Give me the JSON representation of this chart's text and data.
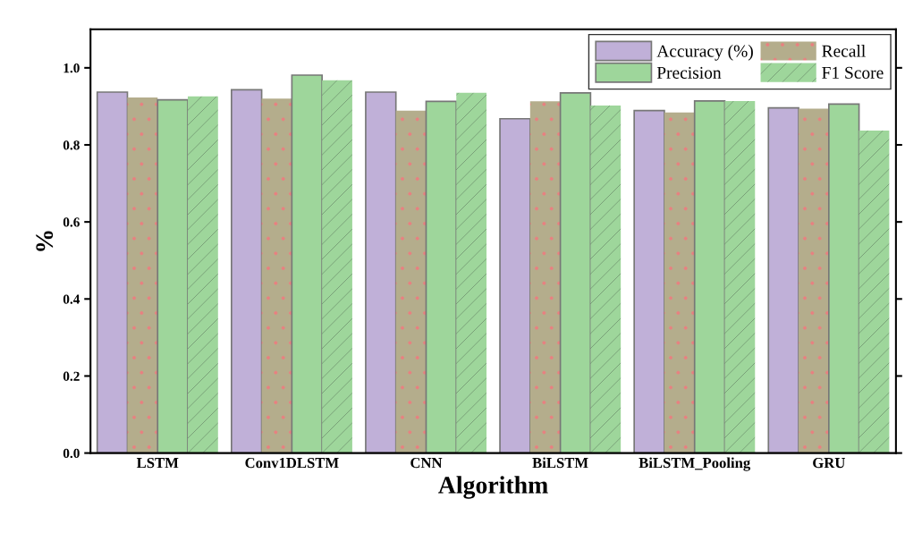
{
  "chart_data": {
    "type": "bar",
    "xlabel": "Algorithm",
    "ylabel": "%",
    "categories": [
      "LSTM",
      "Conv1DLSTM",
      "CNN",
      "BiLSTM",
      "BiLSTM_Pooling",
      "GRU"
    ],
    "series": [
      {
        "name": "Accuracy (%)",
        "color": "#c0b0d8",
        "values": [
          0.937,
          0.943,
          0.937,
          0.868,
          0.889,
          0.896
        ]
      },
      {
        "name": "Recall",
        "color": "#b4ad8c",
        "values": [
          0.923,
          0.92,
          0.889,
          0.913,
          0.884,
          0.894
        ]
      },
      {
        "name": "Precision",
        "color": "#9ed69b",
        "values": [
          0.917,
          0.981,
          0.913,
          0.935,
          0.914,
          0.906
        ]
      },
      {
        "name": "F1 Score",
        "color": "#9ed69b",
        "values": [
          0.926,
          0.968,
          0.935,
          0.902,
          0.914,
          0.837
        ]
      }
    ],
    "ylim": [
      0,
      1.1
    ],
    "yticks": [
      {
        "value": 0,
        "label": "0.0"
      },
      0.2,
      0.4,
      0.6,
      0.8,
      {
        "value": 1,
        "label": "1.0"
      }
    ],
    "legend": "top right",
    "grid": false
  }
}
